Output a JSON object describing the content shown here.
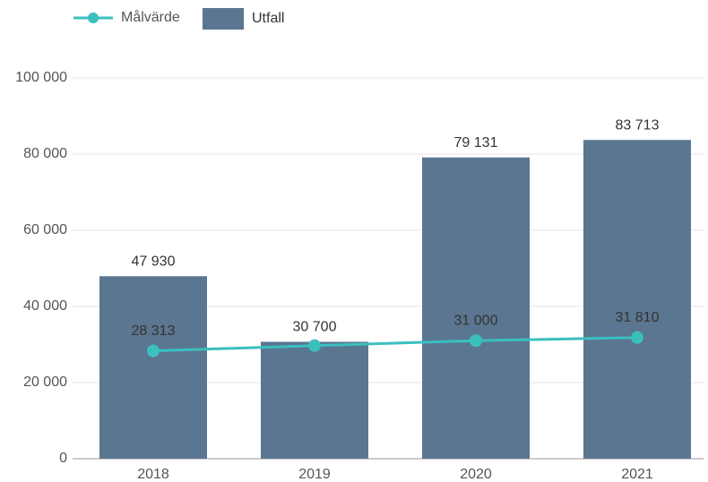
{
  "chart_data": {
    "type": "bar",
    "categories": [
      "2018",
      "2019",
      "2020",
      "2021"
    ],
    "series": [
      {
        "name": "Utfall",
        "type": "bar",
        "color": "#5b7690",
        "values": [
          47930,
          30700,
          79131,
          83713
        ],
        "value_labels": [
          "47 930",
          "30 700",
          "79 131",
          "83 713"
        ]
      },
      {
        "name": "Målvärde",
        "type": "line",
        "color": "#3bbfbf",
        "values": [
          28313,
          29700,
          31000,
          31810
        ],
        "value_labels": [
          "28 313",
          null,
          "31 000",
          "31 810"
        ]
      }
    ],
    "ylim": [
      0,
      100000
    ],
    "yticks": [
      0,
      {
        "value": 20000,
        "label": "20 000"
      },
      {
        "value": 40000,
        "label": "40 000"
      },
      {
        "value": 60000,
        "label": "60 000"
      },
      {
        "value": 80000,
        "label": "80 000"
      },
      {
        "value": 100000,
        "label": "100 000"
      }
    ],
    "grid": true,
    "legend": "top-left"
  }
}
